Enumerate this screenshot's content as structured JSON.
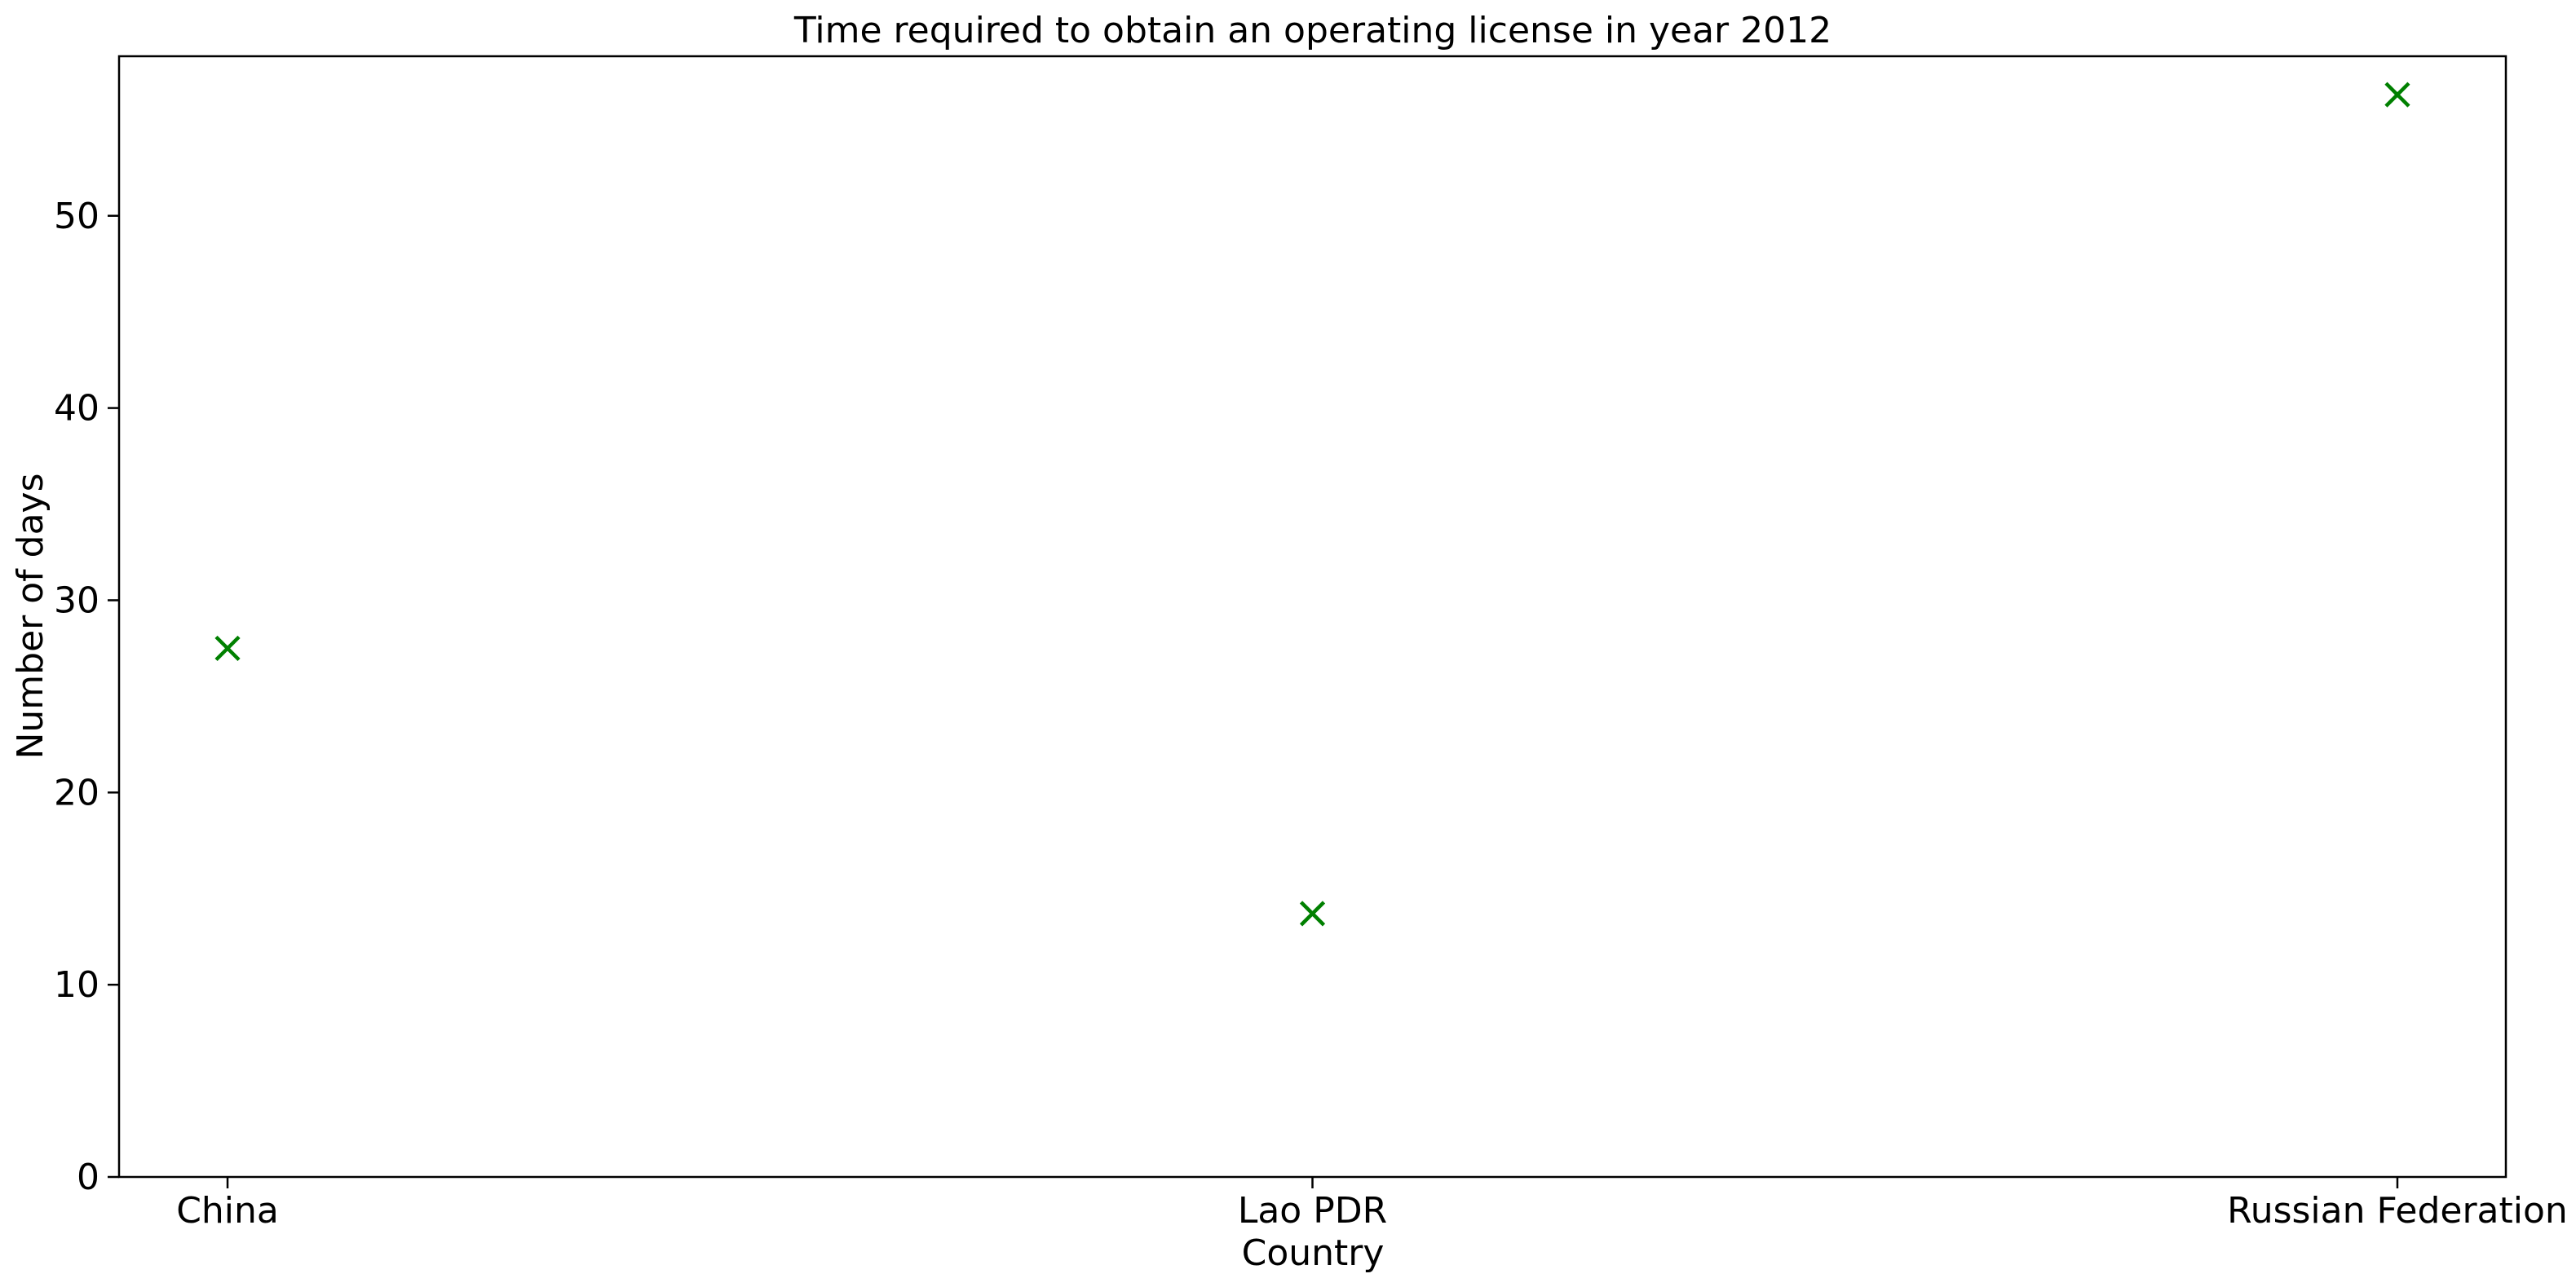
{
  "chart_data": {
    "type": "scatter",
    "title": "Time required to obtain an operating license in year 2012",
    "xlabel": "Country",
    "ylabel": "Number of days",
    "categories": [
      "China",
      "Lao PDR",
      "Russian Federation"
    ],
    "series": [
      {
        "values": [
          27.5,
          13.7,
          56.3
        ]
      }
    ],
    "marker": "x",
    "color": "#008000",
    "ylim": [
      0,
      58.3
    ],
    "yticks": [
      0,
      10,
      20,
      30,
      40,
      50
    ],
    "grid": false,
    "legend": "none"
  }
}
